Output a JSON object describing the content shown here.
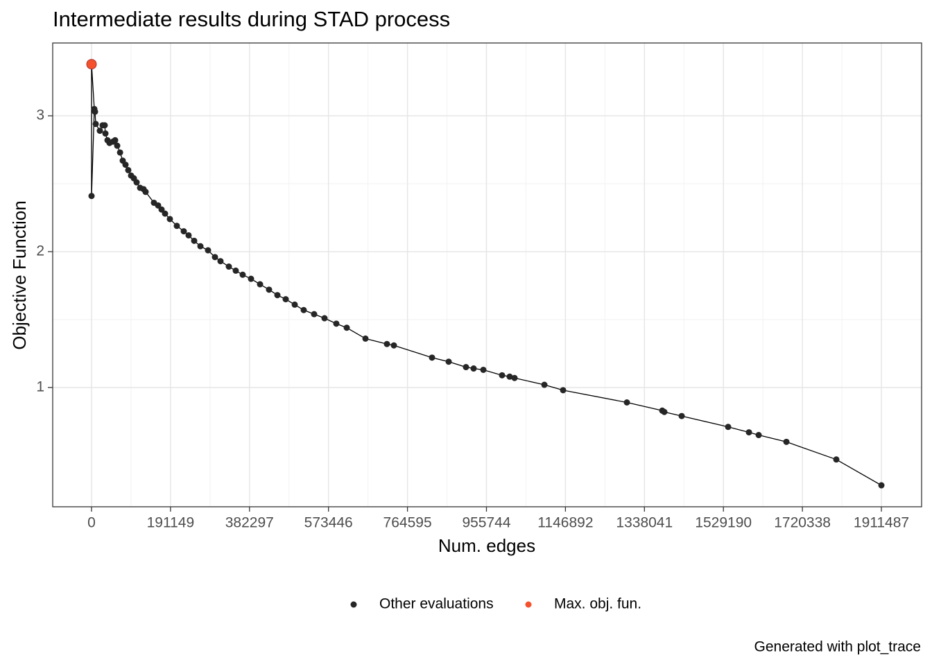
{
  "chart_data": {
    "type": "line-scatter",
    "title": "Intermediate results during STAD process",
    "x_label": "Num. edges",
    "y_label": "Objective Function",
    "caption": "Generated with plot_trace",
    "xlim": [
      -93980,
      2008820
    ],
    "ylim": [
      0.122,
      3.536
    ],
    "xticks": [
      0,
      191149,
      382297,
      573446,
      764595,
      955744,
      1146892,
      1338041,
      1529190,
      1720338,
      1911487
    ],
    "yticks": [
      1,
      2,
      3
    ],
    "grid": true,
    "legend": "bottom",
    "series": [
      {
        "name": "Other evaluations",
        "color": "#262626",
        "x": [
          0,
          6700,
          8400,
          10100,
          20100,
          26800,
          31900,
          33600,
          38600,
          43600,
          52000,
          57100,
          62100,
          69000,
          75500,
          82200,
          88900,
          95700,
          102400,
          109100,
          117500,
          125900,
          130900,
          151000,
          161100,
          169500,
          177900,
          189600,
          206400,
          223200,
          234900,
          248400,
          263500,
          281900,
          298700,
          312100,
          332300,
          349000,
          365800,
          386000,
          407800,
          429600,
          449800,
          469900,
          491700,
          513500,
          538700,
          563800,
          592400,
          617600,
          662900,
          714900,
          731700,
          824000,
          864300,
          906200,
          924700,
          948200,
          993500,
          1011900,
          1023700,
          1095900,
          1141200,
          1295600,
          1381200,
          1386200,
          1428200,
          1540600,
          1591000,
          1614500,
          1681600,
          1802400,
          1911500
        ],
        "values": [
          2.41,
          3.05,
          3.03,
          2.94,
          2.89,
          2.93,
          2.93,
          2.87,
          2.82,
          2.8,
          2.81,
          2.82,
          2.78,
          2.73,
          2.67,
          2.64,
          2.6,
          2.56,
          2.54,
          2.51,
          2.47,
          2.46,
          2.44,
          2.36,
          2.34,
          2.31,
          2.28,
          2.24,
          2.19,
          2.15,
          2.12,
          2.08,
          2.04,
          2.01,
          1.96,
          1.93,
          1.89,
          1.86,
          1.83,
          1.8,
          1.76,
          1.72,
          1.68,
          1.65,
          1.61,
          1.57,
          1.54,
          1.51,
          1.47,
          1.44,
          1.36,
          1.32,
          1.31,
          1.22,
          1.19,
          1.15,
          1.14,
          1.13,
          1.09,
          1.08,
          1.07,
          1.02,
          0.98,
          0.89,
          0.83,
          0.82,
          0.79,
          0.71,
          0.67,
          0.65,
          0.6,
          0.47,
          0.28
        ]
      },
      {
        "name": "Max. obj. fun.",
        "color": "#f4512c",
        "x": [
          0
        ],
        "values": [
          3.38
        ]
      }
    ]
  }
}
